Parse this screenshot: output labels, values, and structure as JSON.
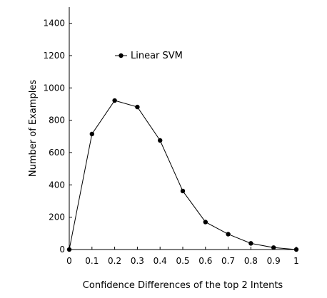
{
  "chart_data": {
    "type": "line",
    "xlabel": "Confidence Differences of the top 2 Intents",
    "ylabel": "Number of Examples",
    "xlim": [
      0,
      1
    ],
    "ylim": [
      0,
      1500
    ],
    "x_ticks": [
      0,
      0.1,
      0.2,
      0.3,
      0.4,
      0.5,
      0.6,
      0.7,
      0.8,
      0.9,
      1
    ],
    "x_tick_labels": [
      "0",
      "0.1",
      "0.2",
      "0.3",
      "0.4",
      "0.5",
      "0.6",
      "0.7",
      "0.8",
      "0.9",
      "1"
    ],
    "y_ticks": [
      0,
      200,
      400,
      600,
      800,
      1000,
      1200,
      1400
    ],
    "y_tick_labels": [
      "0",
      "200",
      "400",
      "600",
      "800",
      "1000",
      "1200",
      "1400"
    ],
    "legend": {
      "placement": "upper-left",
      "entries": [
        "Linear SVM"
      ]
    },
    "grid": false,
    "series": [
      {
        "name": "Linear SVM",
        "color": "#000000",
        "marker": "circle",
        "x": [
          0,
          0.1,
          0.2,
          0.3,
          0.4,
          0.5,
          0.6,
          0.7,
          0.8,
          0.9,
          1
        ],
        "y": [
          0,
          715,
          922,
          882,
          675,
          362,
          170,
          95,
          38,
          12,
          0
        ]
      }
    ]
  }
}
